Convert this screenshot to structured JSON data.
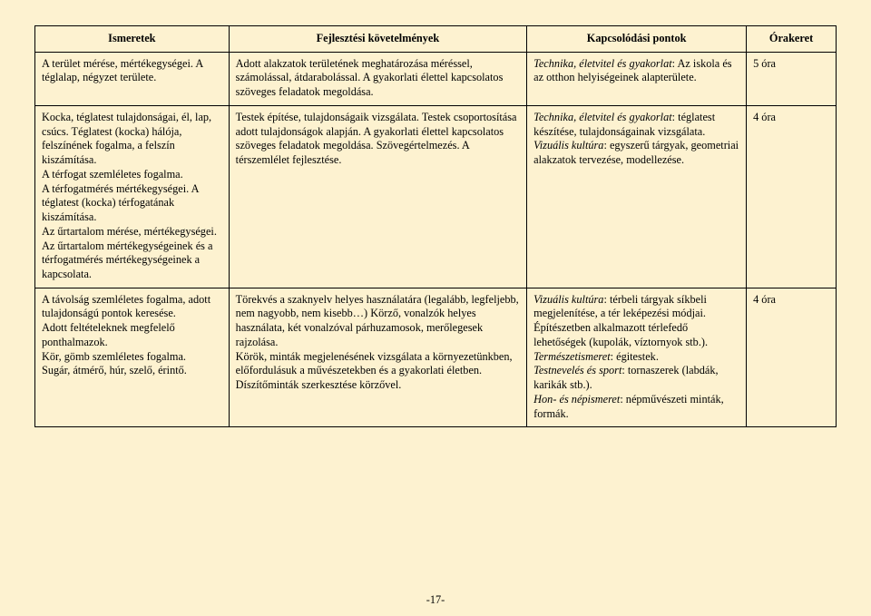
{
  "header": {
    "col1": "Ismeretek",
    "col2": "Fejlesztési követelmények",
    "col3": "Kapcsolódási pontok",
    "col4": "Órakeret"
  },
  "rows": [
    {
      "ismeretek": "A terület mérése, mértékegységei. A téglalap, négyzet területe.",
      "fejlesztes": "Adott alakzatok területének meghatározása méréssel, számolással, átdarabolással. A gyakorlati élettel kapcsolatos szöveges feladatok megoldása.",
      "kapcs_pre_it": "Technika, életvitel és gyakorlat",
      "kapcs_post": ": Az iskola és az otthon helyiségeinek alapterülete.",
      "ora": "5 óra"
    },
    {
      "ismeretek_parts": [
        "Kocka, téglatest tulajdonságai, él, lap, csúcs. Téglatest (kocka) hálója, felszínének fogalma, a felszín kiszámítása.",
        "A térfogat szemléletes fogalma.",
        "A térfogatmérés mértékegységei. A téglatest (kocka) térfogatának kiszámítása.",
        "Az űrtartalom mérése, mértékegységei. Az űrtartalom mértékegységeinek és a térfogatmérés mértékegységeinek a kapcsolata."
      ],
      "fejlesztes": "Testek építése, tulajdonságaik vizsgálata. Testek csoportosítása adott tulajdonságok alapján. A gyakorlati élettel kapcsolatos szöveges feladatok megoldása. Szövegértelmezés. A térszemlélet fejlesztése.",
      "kapcs_parts": [
        {
          "it": "Technika, életvitel és gyakorlat",
          "rest": ": téglatest készítése, tulajdonságainak vizsgálata."
        },
        {
          "it": "Vizuális kultúra",
          "rest": ": egyszerű tárgyak, geometriai alakzatok tervezése, modellezése."
        }
      ],
      "ora": "4 óra"
    },
    {
      "ismeretek_parts": [
        "A távolság szemléletes fogalma, adott tulajdonságú pontok keresése.",
        "Adott feltételeknek megfelelő ponthalmazok.",
        "Kör, gömb szemléletes fogalma.",
        "Sugár, átmérő, húr, szelő, érintő."
      ],
      "fejlesztes_parts": [
        "Törekvés a szaknyelv helyes használatára (legalább, legfeljebb, nem nagyobb, nem kisebb…) Körző, vonalzók helyes használata, két vonalzóval párhuzamosok, merőlegesek rajzolása.",
        "Körök, minták megjelenésének vizsgálata a környezetünkben, előfordulásuk a művészetekben és a gyakorlati életben. Díszítőminták szerkesztése körzővel."
      ],
      "kapcs_parts": [
        {
          "it": "Vizuális kultúra",
          "rest": ": térbeli tárgyak síkbeli megjelenítése, a tér leképezési módjai."
        },
        {
          "plain": "Építészetben alkalmazott térlefedő lehetőségek (kupolák, víztornyok stb.)."
        },
        {
          "it": "Természetismeret",
          "rest": ": égitestek."
        },
        {
          "it": "Testnevelés és sport",
          "rest": ": tornaszerek (labdák, karikák stb.)."
        },
        {
          "it": "Hon- és népismeret",
          "rest": ": népművészeti minták, formák."
        }
      ],
      "ora": "4 óra"
    }
  ],
  "footer": "-17-"
}
